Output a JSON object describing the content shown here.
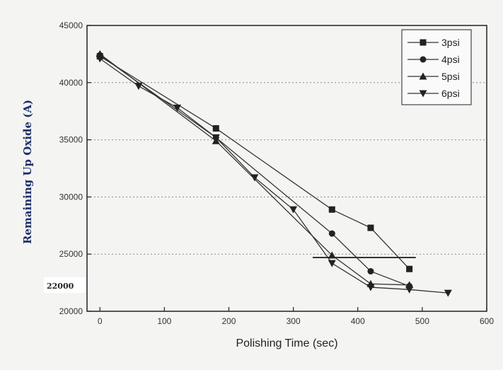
{
  "chart_data": {
    "type": "line",
    "xlabel": "Polishing Time (sec)",
    "ylabel": "Remaining Up Oxide (A)",
    "xlim": [
      -20,
      600
    ],
    "ylim": [
      20000,
      45000
    ],
    "xticks": [
      "0",
      "100",
      "200",
      "300",
      "400",
      "500",
      "600"
    ],
    "yticks": [
      "20000",
      "25000",
      "30000",
      "35000",
      "40000",
      "45000"
    ],
    "grid": "horizontal-dotted",
    "legend_position": "top-right",
    "series": [
      {
        "name": "3psi",
        "marker": "square",
        "x": [
          0,
          180,
          360,
          420,
          480
        ],
        "y": [
          42300,
          36000,
          28900,
          27300,
          23700
        ]
      },
      {
        "name": "4psi",
        "marker": "circle",
        "x": [
          0,
          180,
          360,
          420,
          480
        ],
        "y": [
          42400,
          35200,
          26800,
          23500,
          22200
        ]
      },
      {
        "name": "5psi",
        "marker": "triangle-up",
        "x": [
          0,
          180,
          360,
          420,
          480
        ],
        "y": [
          42500,
          34900,
          24900,
          22400,
          22300
        ]
      },
      {
        "name": "6psi",
        "marker": "triangle-down",
        "x": [
          0,
          60,
          120,
          180,
          240,
          300,
          360,
          420,
          480,
          540
        ],
        "y": [
          42100,
          39700,
          37800,
          35200,
          31700,
          28900,
          24200,
          22100,
          21900,
          21600
        ]
      }
    ],
    "annotations": [
      "22000"
    ],
    "target_line": {
      "x": [
        330,
        490
      ],
      "y": 24700
    }
  }
}
